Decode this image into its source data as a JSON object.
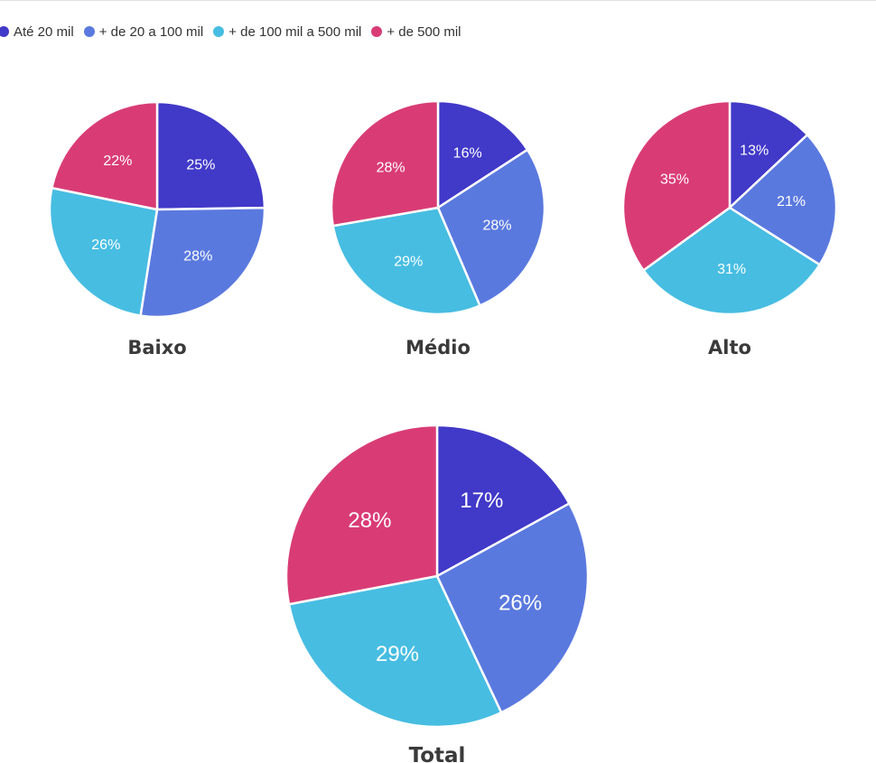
{
  "chart_data": {
    "type": "pie",
    "legend": {
      "position": "top-left",
      "entries": [
        {
          "label": "Até 20 mil",
          "color": "#4139c8"
        },
        {
          "label": "+ de 20 a 100 mil",
          "color": "#5a79df"
        },
        {
          "label": "+ de 100 mil a 500 mil",
          "color": "#47bde2"
        },
        {
          "label": "+ de 500 mil",
          "color": "#d93c75"
        }
      ]
    },
    "pies": [
      {
        "title": "Baixo",
        "values": [
          25,
          28,
          26,
          22
        ],
        "labels": [
          "25%",
          "28%",
          "26%",
          "22%"
        ]
      },
      {
        "title": "Médio",
        "values": [
          16,
          28,
          29,
          28
        ],
        "labels": [
          "16%",
          "28%",
          "29%",
          "28%"
        ]
      },
      {
        "title": "Alto",
        "values": [
          13,
          21,
          31,
          35
        ],
        "labels": [
          "13%",
          "21%",
          "31%",
          "35%"
        ]
      },
      {
        "title": "Total",
        "values": [
          17,
          26,
          29,
          28
        ],
        "labels": [
          "17%",
          "26%",
          "29%",
          "28%"
        ]
      }
    ]
  }
}
